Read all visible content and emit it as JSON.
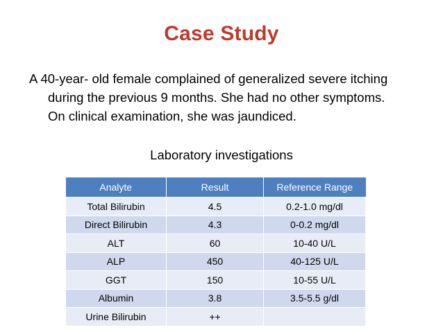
{
  "slide": {
    "title": "Case Study",
    "paragraph_lines": [
      "A 40-year- old female complained of generalized severe itching",
      "during the previous 9 months. She had no other symptoms.",
      "On clinical examination, she was jaundiced."
    ],
    "subtitle": "Laboratory investigations"
  },
  "table": {
    "headers": [
      "Analyte",
      "Result",
      "Reference Range"
    ],
    "rows": [
      [
        "Total Bilirubin",
        "4.5",
        "0.2-1.0 mg/dl"
      ],
      [
        "Direct Bilirubin",
        "4.3",
        "0-0.2 mg/dl"
      ],
      [
        "ALT",
        "60",
        "10-40 U/L"
      ],
      [
        "ALP",
        "450",
        "40-125 U/L"
      ],
      [
        "GGT",
        "150",
        "10-55 U/L"
      ],
      [
        "Albumin",
        "3.8",
        "3.5-5.5 g/dl"
      ],
      [
        "Urine Bilirubin",
        "++",
        ""
      ]
    ]
  },
  "colors": {
    "title": "#c0392b",
    "header_bg": "#4e7fbf",
    "row_light": "#e8ecf6",
    "row_dark": "#cfd8ec"
  }
}
